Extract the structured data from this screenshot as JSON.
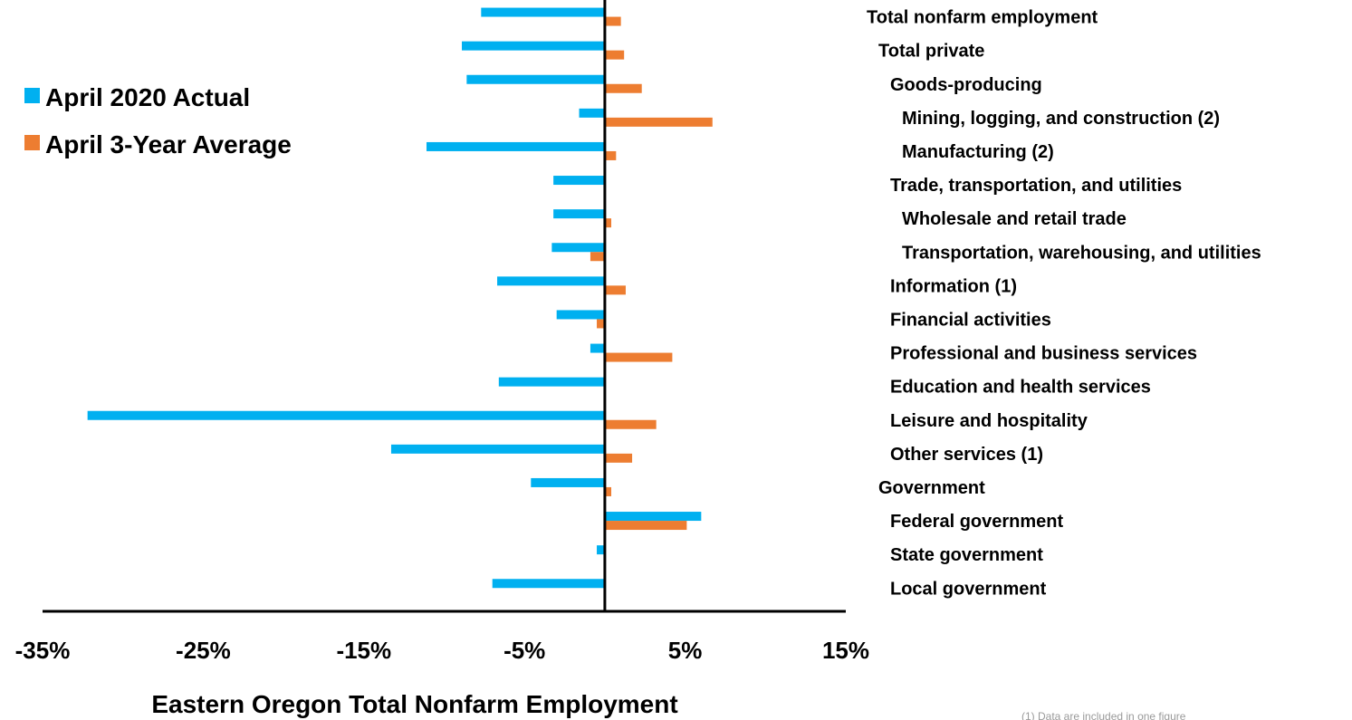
{
  "chart_data": {
    "type": "bar",
    "orientation": "horizontal",
    "title": "Eastern Oregon Total Nonfarm Employment",
    "xlim": [
      -35,
      15
    ],
    "x_ticks": [
      "-35%",
      "-25%",
      "-15%",
      "-5%",
      "5%",
      "15%"
    ],
    "x_tick_values": [
      -35,
      -25,
      -15,
      -5,
      5,
      15
    ],
    "legend_position": "top-left",
    "grid": false,
    "categories": [
      "Total nonfarm employment",
      "Total private",
      "Goods-producing",
      "Mining, logging, and construction (2)",
      "Manufacturing (2)",
      "Trade, transportation, and utilities",
      "Wholesale and retail trade",
      "Transportation, warehousing, and utilities",
      "Information (1)",
      "Financial activities",
      "Professional and business services",
      "Education and health services",
      "Leisure and hospitality",
      "Other services (1)",
      "Government",
      "Federal government",
      "State government",
      "Local government"
    ],
    "category_indent": [
      0,
      1,
      2,
      3,
      3,
      2,
      3,
      3,
      2,
      2,
      2,
      2,
      2,
      2,
      1,
      2,
      2,
      2
    ],
    "series": [
      {
        "name": "April 2020 Actual",
        "color": "#00b0f0",
        "values": [
          -7.7,
          -8.9,
          -8.6,
          -1.6,
          -11.1,
          -3.2,
          -3.2,
          -3.3,
          -6.7,
          -3.0,
          -0.9,
          -6.6,
          -32.2,
          -13.3,
          -4.6,
          6.0,
          -0.5,
          -7.0
        ]
      },
      {
        "name": "April 3-Year Average",
        "color": "#ed7d31",
        "values": [
          1.0,
          1.2,
          2.3,
          6.7,
          0.7,
          0.0,
          0.4,
          -0.9,
          1.3,
          -0.5,
          4.2,
          0.0,
          3.2,
          1.7,
          0.4,
          5.1,
          0.0,
          0.0
        ]
      }
    ],
    "footnote": "(1) Data are included in one figure"
  }
}
